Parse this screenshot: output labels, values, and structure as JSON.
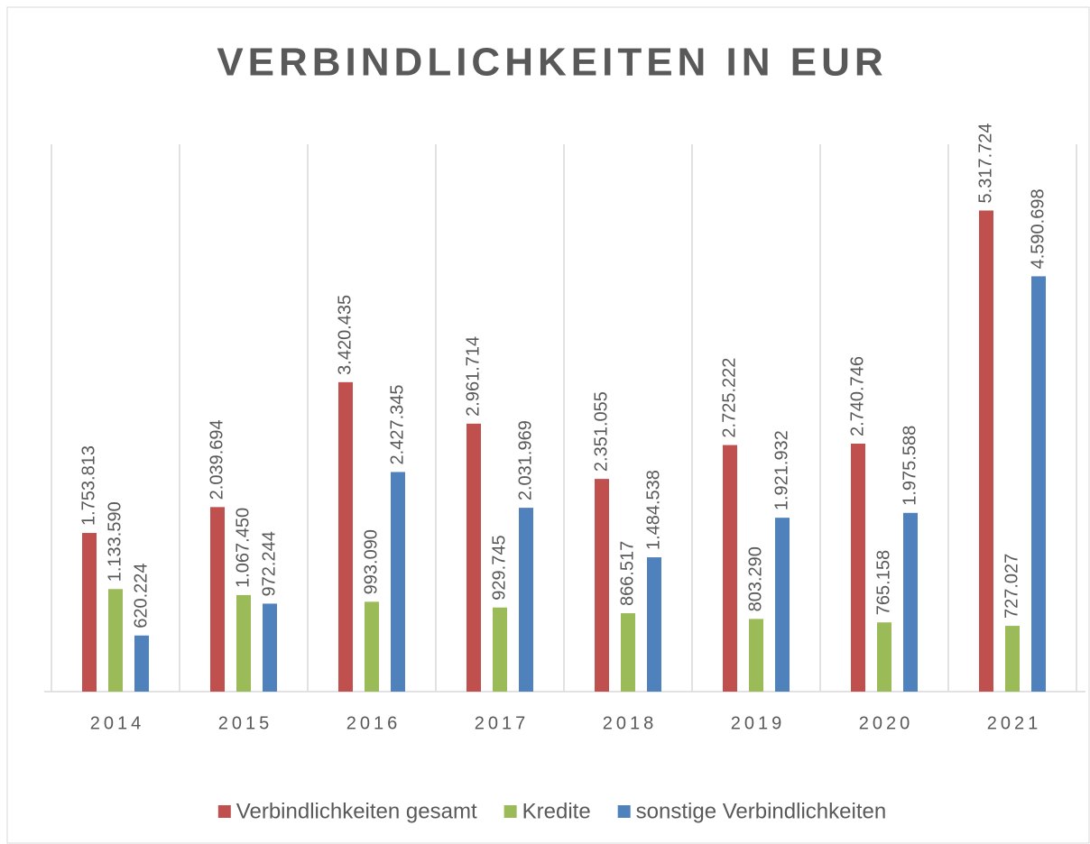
{
  "chart_data": {
    "type": "bar",
    "title": "VERBINDLICHKEITEN IN EUR",
    "categories": [
      "2014",
      "2015",
      "2016",
      "2017",
      "2018",
      "2019",
      "2020",
      "2021"
    ],
    "series": [
      {
        "name": "Verbindlichkeiten gesamt",
        "color": "#c0504d",
        "values": [
          1753813,
          2039694,
          3420435,
          2961714,
          2351055,
          2725222,
          2740746,
          5317724
        ],
        "value_labels": [
          "1.753.813",
          "2.039.694",
          "3.420.435",
          "2.961.714",
          "2.351.055",
          "2.725.222",
          "2.740.746",
          "5.317.724"
        ]
      },
      {
        "name": "Kredite",
        "color": "#9bbb59",
        "values": [
          1133590,
          1067450,
          993090,
          929745,
          866517,
          803290,
          765158,
          727027
        ],
        "value_labels": [
          "1.133.590",
          "1.067.450",
          "993.090",
          "929.745",
          "866.517",
          "803.290",
          "765.158",
          "727.027"
        ]
      },
      {
        "name": "sonstige Verbindlichkeiten",
        "color": "#4f81bd",
        "values": [
          620224,
          972244,
          2427345,
          2031969,
          1484538,
          1921932,
          1975588,
          4590698
        ],
        "value_labels": [
          "620.224",
          "972.244",
          "2.427.345",
          "2.031.969",
          "1.484.538",
          "1.921.932",
          "1.975.588",
          "4.590.698"
        ]
      }
    ],
    "ylim": [
      0,
      6000000
    ],
    "legend": "bottom"
  }
}
